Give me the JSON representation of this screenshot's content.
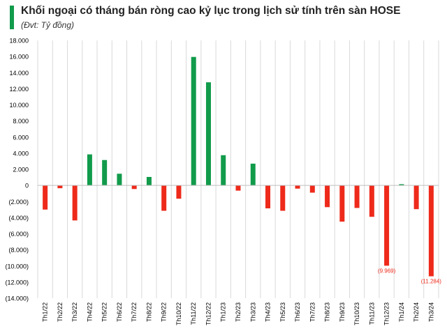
{
  "chart_data": {
    "type": "bar",
    "title": "Khối ngoại có tháng bán ròng cao kỷ lục trong lịch sử tính trên sàn HOSE",
    "subtitle": "(Đvt: Tỷ đồng)",
    "categories": [
      "Th1/22",
      "Th2/22",
      "Th3/22",
      "Th4/22",
      "Th5/22",
      "Th6/22",
      "Th7/22",
      "Th8/22",
      "Th9/22",
      "Th10/22",
      "Th11/22",
      "Th12/22",
      "Th1/23",
      "Th2/23",
      "Th3/23",
      "Th4/23",
      "Th5/23",
      "Th6/23",
      "Th7/23",
      "Th8/23",
      "Th9/23",
      "Th10/23",
      "Th11/23",
      "Th12/23",
      "Th1/24",
      "Th2/24",
      "Th3/24"
    ],
    "values": [
      -3000,
      -350,
      -4350,
      3850,
      3150,
      1450,
      -450,
      1050,
      -3150,
      -1650,
      15950,
      12800,
      3750,
      -650,
      2700,
      -2850,
      -3150,
      -400,
      -900,
      -2700,
      -4500,
      -2800,
      -3900,
      -9969,
      150,
      -2950,
      -11284
    ],
    "ylim": [
      -14000,
      18000
    ],
    "yticks": [
      18000,
      16000,
      14000,
      12000,
      10000,
      8000,
      6000,
      4000,
      2000,
      0,
      -2000,
      -4000,
      -6000,
      -8000,
      -10000,
      -12000,
      -14000
    ],
    "ytick_labels": [
      "18.000",
      "16.000",
      "14.000",
      "12.000",
      "10.000",
      "8.000",
      "6.000",
      "4.000",
      "2.000",
      "0",
      "(2.000)",
      "(4.000)",
      "(6.000)",
      "(8.000)",
      "(10.000)",
      "(12.000)",
      "(14.000)"
    ],
    "data_labels": [
      {
        "category": "Th12/23",
        "text": "(9.969)"
      },
      {
        "category": "Th3/24",
        "text": "(11.284)"
      }
    ],
    "grid": true,
    "colors": {
      "positive": "#119b4b",
      "negative": "#ee2a1b",
      "accent": "#119b4b",
      "label": "#ee2a1b",
      "grid": "#d9d9d9"
    }
  }
}
